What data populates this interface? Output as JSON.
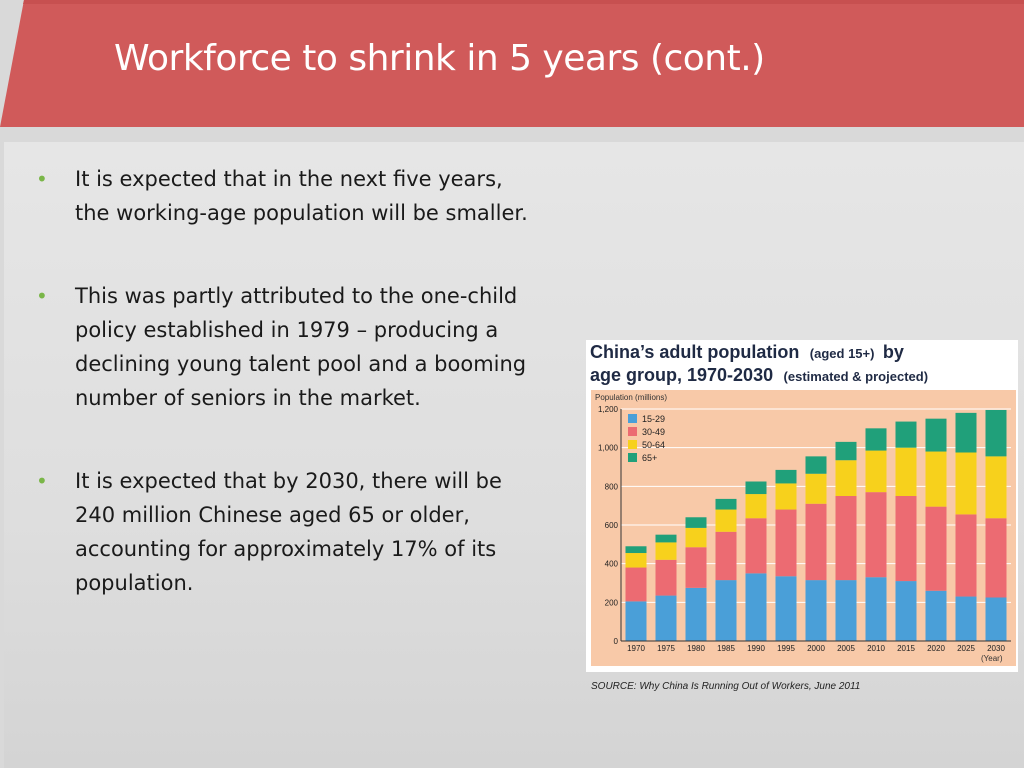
{
  "slide": {
    "title": "Workforce to shrink in 5 years (cont.)",
    "colors": {
      "banner": "#d05a5a",
      "bullet": "#7ab648"
    }
  },
  "bullets": [
    "It is expected that in the next five years, the working-age population will be smaller.",
    "This was partly attributed to the one-child policy established in 1979 – producing a declining young talent pool and a booming number of seniors in the market.",
    "It is expected that by 2030, there will be 240 million Chinese aged 65 or older, accounting for approximately 17% of its population."
  ],
  "source": "SOURCE: Why China Is Running Out of Workers, June 2011",
  "chart_data": {
    "type": "bar",
    "stacked": true,
    "title_bold_1": "China’s adult population",
    "title_paren_1": "(aged 15+)",
    "title_bold_2": "by",
    "title_bold_3": "age group, 1970-2030",
    "title_paren_2": "(estimated & projected)",
    "ylabel": "Population (millions)",
    "xlabel": "(Year)",
    "ylim": [
      0,
      1200
    ],
    "yticks": [
      0,
      200,
      400,
      600,
      800,
      "1,000",
      "1,200"
    ],
    "grid": true,
    "legend_position": "top-left",
    "background": "#f8c9a8",
    "categories": [
      "1970",
      "1975",
      "1980",
      "1985",
      "1990",
      "1995",
      "2000",
      "2005",
      "2010",
      "2015",
      "2020",
      "2025",
      "2030"
    ],
    "series": [
      {
        "name": "15-29",
        "color": "#4a9fd8",
        "values": [
          205,
          235,
          275,
          315,
          350,
          335,
          315,
          315,
          330,
          310,
          260,
          230,
          225
        ]
      },
      {
        "name": "30-49",
        "color": "#ec6b72",
        "values": [
          175,
          185,
          210,
          250,
          285,
          345,
          395,
          435,
          440,
          440,
          435,
          425,
          410
        ]
      },
      {
        "name": "50-64",
        "color": "#f7d11c",
        "values": [
          75,
          90,
          100,
          115,
          125,
          135,
          155,
          185,
          215,
          250,
          285,
          320,
          320
        ]
      },
      {
        "name": "65+",
        "color": "#20a07a",
        "values": [
          35,
          40,
          55,
          55,
          65,
          70,
          90,
          95,
          115,
          135,
          170,
          205,
          240
        ]
      }
    ]
  }
}
